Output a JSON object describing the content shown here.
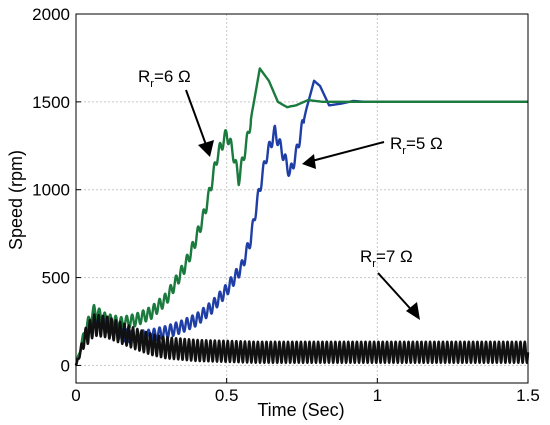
{
  "chart_data": {
    "type": "line",
    "title": "",
    "xlabel": "Time (Sec)",
    "ylabel": "Speed (rpm)",
    "xlim": [
      0,
      1.5
    ],
    "ylim": [
      -100,
      2000
    ],
    "xticks": [
      0,
      0.5,
      1,
      1.5
    ],
    "xtick_labels": [
      "0",
      "0.5",
      "1",
      "1.5"
    ],
    "yticks": [
      0,
      500,
      1000,
      1500,
      2000
    ],
    "ytick_labels": [
      "0",
      "500",
      "1000",
      "1500",
      "2000"
    ],
    "grid": true,
    "series": [
      {
        "color": "#1f3fa6",
        "x": [
          0,
          0.03,
          0.06,
          0.1,
          0.15,
          0.2,
          0.25,
          0.3,
          0.35,
          0.4,
          0.45,
          0.5,
          0.55,
          0.58,
          0.6,
          0.63,
          0.66,
          0.69,
          0.71,
          0.73,
          0.76,
          0.79,
          0.81,
          0.84,
          0.88,
          0.92,
          0.96,
          1.0,
          1.5
        ],
        "y": [
          0,
          180,
          280,
          230,
          175,
          160,
          170,
          190,
          220,
          260,
          330,
          430,
          560,
          720,
          920,
          1180,
          1330,
          1190,
          1090,
          1200,
          1430,
          1620,
          1590,
          1480,
          1490,
          1505,
          1500,
          1500,
          1500
        ],
        "ripple_amplitude": 35,
        "ripple_frequency_hz": 55
      },
      {
        "color": "#1b7a3e",
        "x": [
          0,
          0.03,
          0.06,
          0.1,
          0.15,
          0.2,
          0.25,
          0.3,
          0.33,
          0.36,
          0.39,
          0.42,
          0.44,
          0.47,
          0.5,
          0.52,
          0.54,
          0.57,
          0.61,
          0.64,
          0.67,
          0.7,
          0.73,
          0.77,
          0.82,
          0.88,
          0.95,
          1.0,
          1.5
        ],
        "y": [
          0,
          200,
          310,
          260,
          240,
          260,
          300,
          380,
          470,
          560,
          680,
          830,
          960,
          1200,
          1320,
          1220,
          1060,
          1300,
          1690,
          1620,
          1500,
          1470,
          1480,
          1510,
          1500,
          1500,
          1500,
          1500,
          1500
        ],
        "ripple_amplitude": 35,
        "ripple_frequency_hz": 55
      },
      {
        "color": "#111111",
        "x": [
          0,
          0.03,
          0.06,
          0.1,
          0.15,
          0.2,
          0.25,
          0.3,
          0.4,
          0.5,
          0.6,
          0.7,
          0.8,
          0.9,
          1.0,
          1.2,
          1.5
        ],
        "y": [
          0,
          160,
          230,
          220,
          185,
          150,
          120,
          100,
          85,
          80,
          75,
          75,
          75,
          75,
          75,
          75,
          75
        ],
        "ripple_amplitude": 60,
        "ripple_frequency_hz": 70
      }
    ],
    "annotations": [
      {
        "label": "R",
        "subscript": "r",
        "value": "=6 Ω"
      },
      {
        "label": "R",
        "subscript": "r",
        "value": "=5 Ω"
      },
      {
        "label": "R",
        "subscript": "r",
        "value": "=7 Ω"
      }
    ]
  }
}
